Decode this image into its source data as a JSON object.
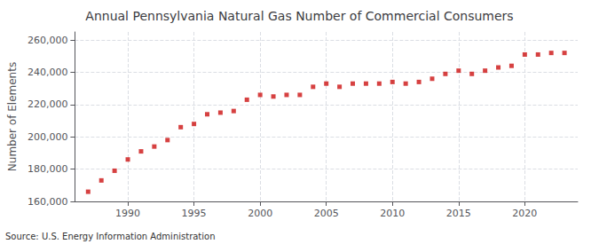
{
  "chart_data": {
    "type": "scatter",
    "title": "Annual Pennsylvania Natural Gas Number of Commercial Consumers",
    "ylabel": "Number of Elements",
    "annotation": "Source: U.S. Energy Information Administration",
    "x": [
      1987,
      1988,
      1989,
      1990,
      1991,
      1992,
      1993,
      1994,
      1995,
      1996,
      1997,
      1998,
      1999,
      2000,
      2001,
      2002,
      2003,
      2004,
      2005,
      2006,
      2007,
      2008,
      2009,
      2010,
      2011,
      2012,
      2013,
      2014,
      2015,
      2016,
      2017,
      2018,
      2019,
      2020,
      2021,
      2022,
      2023
    ],
    "values": [
      166000,
      173000,
      179000,
      186000,
      191000,
      194000,
      198000,
      206000,
      208000,
      214000,
      215000,
      216000,
      223000,
      226000,
      225000,
      226000,
      226000,
      231000,
      233000,
      231000,
      233000,
      233000,
      233000,
      234000,
      233000,
      234000,
      236000,
      239000,
      241000,
      239000,
      241000,
      243000,
      244000,
      251000,
      251000,
      252000,
      252000
    ],
    "color": "#cc1111",
    "marker": "square",
    "xlim": [
      1986,
      2024
    ],
    "xticks": [
      1990,
      1995,
      2000,
      2005,
      2010,
      2015,
      2020
    ],
    "ylim": [
      160000,
      265000
    ],
    "yticks": [
      {
        "value": 160000,
        "label": "160,000"
      },
      {
        "value": 180000,
        "label": "180,000"
      },
      {
        "value": 200000,
        "label": "200,000"
      },
      {
        "value": 220000,
        "label": "220,000"
      },
      {
        "value": 240000,
        "label": "240,000"
      },
      {
        "value": 260000,
        "label": "260,000"
      }
    ],
    "grid": true
  }
}
